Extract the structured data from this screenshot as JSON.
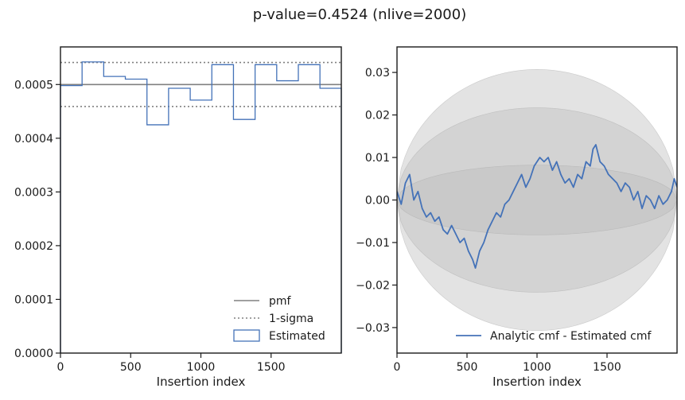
{
  "title": "p-value=0.4524 (nlive=2000)",
  "chart_data": [
    {
      "type": "line",
      "subtype": "step-histogram",
      "xlabel": "Insertion index",
      "ylabel": "",
      "xlim": [
        0,
        2000
      ],
      "ylim": [
        0,
        0.00057
      ],
      "xticks": [
        0,
        500,
        1000,
        1500
      ],
      "yticks": [
        0.0,
        0.0001,
        0.0002,
        0.0003,
        0.0004,
        0.0005
      ],
      "xtick_labels": [
        "0",
        "500",
        "1000",
        "1500"
      ],
      "ytick_labels": [
        "0.0000",
        "0.0001",
        "0.0002",
        "0.0003",
        "0.0004",
        "0.0005"
      ],
      "bin_edges": [
        0,
        154,
        308,
        462,
        616,
        770,
        924,
        1078,
        1232,
        1386,
        1540,
        1694,
        1848,
        2000
      ],
      "series": [
        {
          "name": "pmf",
          "style": "solid",
          "color": "#808080",
          "value": 0.0005
        },
        {
          "name": "1-sigma",
          "style": "dotted",
          "color": "#808080",
          "values": [
            0.000459,
            0.000541
          ]
        },
        {
          "name": "Estimated",
          "style": "step",
          "color": "#4472b8",
          "values": [
            0.000498,
            0.000542,
            0.000515,
            0.00051,
            0.000425,
            0.000493,
            0.000471,
            0.000537,
            0.000435,
            0.000537,
            0.000507,
            0.000537,
            0.000493
          ]
        }
      ],
      "legend": {
        "placement": "lower-right",
        "entries": [
          "pmf",
          "1-sigma",
          "Estimated"
        ]
      },
      "grid": false
    },
    {
      "type": "line",
      "xlabel": "Insertion index",
      "ylabel": "",
      "xlim": [
        0,
        2000
      ],
      "ylim": [
        -0.036,
        0.036
      ],
      "xticks": [
        0,
        500,
        1000,
        1500
      ],
      "yticks": [
        -0.03,
        -0.02,
        -0.01,
        0.0,
        0.01,
        0.02,
        0.03
      ],
      "xtick_labels": [
        "0",
        "500",
        "1000",
        "1500"
      ],
      "ytick_labels": [
        "−0.03",
        "−0.02",
        "−0.01",
        "0.00",
        "0.01",
        "0.02",
        "0.03"
      ],
      "bands": [
        {
          "sigma": 1,
          "half_width_max": 0.0082
        },
        {
          "sigma": 2,
          "half_width_max": 0.0217
        },
        {
          "sigma": 3,
          "half_width_max": 0.0307
        }
      ],
      "band_color": "#bdbdbd",
      "series": [
        {
          "name": "Analytic cmf - Estimated cmf",
          "color": "#4472b8",
          "x": [
            0,
            30,
            60,
            90,
            120,
            150,
            180,
            210,
            240,
            270,
            300,
            330,
            360,
            390,
            420,
            450,
            480,
            510,
            540,
            560,
            590,
            620,
            650,
            680,
            710,
            740,
            770,
            800,
            830,
            860,
            890,
            920,
            950,
            980,
            1000,
            1020,
            1050,
            1080,
            1110,
            1140,
            1170,
            1200,
            1230,
            1260,
            1290,
            1320,
            1350,
            1380,
            1400,
            1420,
            1450,
            1480,
            1510,
            1540,
            1570,
            1600,
            1630,
            1660,
            1690,
            1720,
            1750,
            1780,
            1810,
            1840,
            1870,
            1900,
            1930,
            1960,
            1980,
            2000
          ],
          "y": [
            0.002,
            -0.001,
            0.004,
            0.006,
            0.0,
            0.002,
            -0.002,
            -0.004,
            -0.003,
            -0.005,
            -0.004,
            -0.007,
            -0.008,
            -0.006,
            -0.008,
            -0.01,
            -0.009,
            -0.012,
            -0.014,
            -0.016,
            -0.012,
            -0.01,
            -0.007,
            -0.005,
            -0.003,
            -0.004,
            -0.001,
            0.0,
            0.002,
            0.004,
            0.006,
            0.003,
            0.005,
            0.008,
            0.009,
            0.01,
            0.009,
            0.01,
            0.007,
            0.009,
            0.006,
            0.004,
            0.005,
            0.003,
            0.006,
            0.005,
            0.009,
            0.008,
            0.012,
            0.013,
            0.009,
            0.008,
            0.006,
            0.005,
            0.004,
            0.002,
            0.004,
            0.003,
            0.0,
            0.002,
            -0.002,
            0.001,
            0.0,
            -0.002,
            0.001,
            -0.001,
            0.0,
            0.002,
            0.005,
            0.003
          ]
        }
      ],
      "legend": {
        "placement": "lower-right",
        "entries": [
          "Analytic cmf - Estimated cmf"
        ]
      },
      "grid": false
    }
  ]
}
